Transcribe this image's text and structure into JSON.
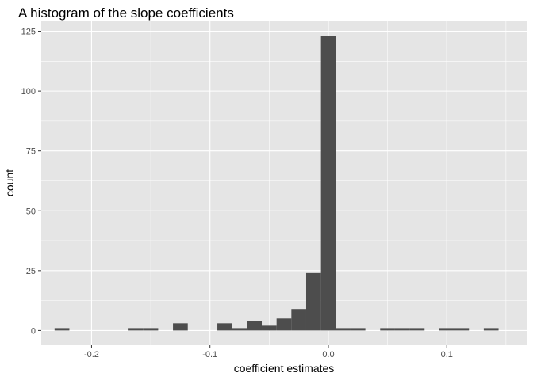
{
  "chart_data": {
    "type": "bar",
    "title": "A histogram of the slope coefficients",
    "xlabel": "coefficient estimates",
    "ylabel": "count",
    "xlim": [
      -0.2425,
      0.1675
    ],
    "ylim": [
      -6.15,
      129.15
    ],
    "binwidth": 0.0125,
    "x_ticks": [
      -0.2,
      -0.1,
      0.0,
      0.1
    ],
    "x_tick_labels": [
      "-0.2",
      "-0.1",
      "0.0",
      "0.1"
    ],
    "y_ticks": [
      0,
      25,
      50,
      75,
      100,
      125
    ],
    "y_tick_labels": [
      "0",
      "25",
      "50",
      "75",
      "100",
      "125"
    ],
    "grid": true,
    "background": "#e5e5e5",
    "bar_color": "#4d4d4d",
    "bins": [
      {
        "x": -0.225,
        "count": 1
      },
      {
        "x": -0.1625,
        "count": 1
      },
      {
        "x": -0.15,
        "count": 1
      },
      {
        "x": -0.125,
        "count": 3
      },
      {
        "x": -0.0875,
        "count": 3
      },
      {
        "x": -0.075,
        "count": 1
      },
      {
        "x": -0.0625,
        "count": 4
      },
      {
        "x": -0.05,
        "count": 2
      },
      {
        "x": -0.0375,
        "count": 5
      },
      {
        "x": -0.025,
        "count": 9
      },
      {
        "x": -0.0125,
        "count": 24
      },
      {
        "x": 0.0,
        "count": 123
      },
      {
        "x": 0.0125,
        "count": 1
      },
      {
        "x": 0.025,
        "count": 1
      },
      {
        "x": 0.05,
        "count": 1
      },
      {
        "x": 0.0625,
        "count": 1
      },
      {
        "x": 0.075,
        "count": 1
      },
      {
        "x": 0.1,
        "count": 1
      },
      {
        "x": 0.1125,
        "count": 1
      },
      {
        "x": 0.1375,
        "count": 1
      }
    ]
  }
}
